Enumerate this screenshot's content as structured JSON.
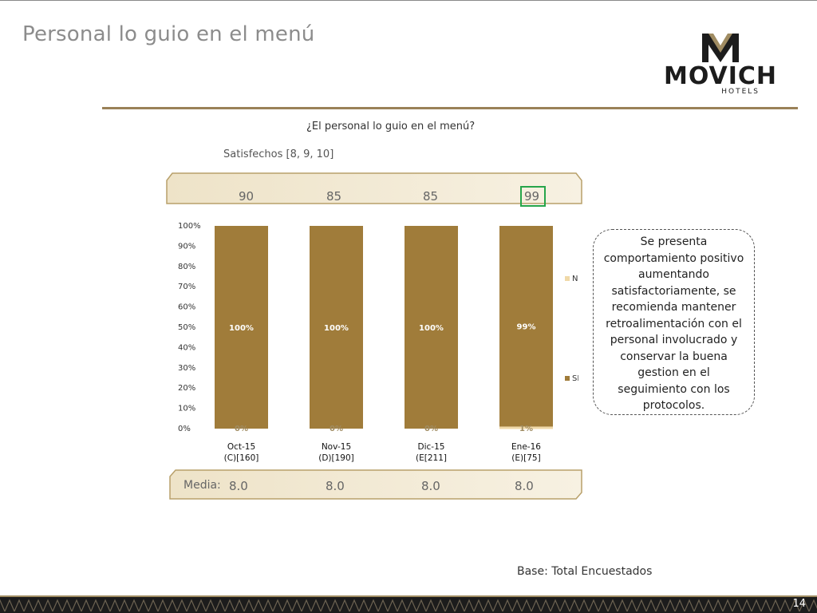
{
  "slide": {
    "title": "Personal lo guio en el menú",
    "page_number": "14",
    "base_note": "Base: Total Encuestados"
  },
  "logo": {
    "word": "MOVICH",
    "sub": "HOTELS"
  },
  "satisfaction": {
    "label": "Satisfechos [8, 9, 10]",
    "values": [
      "90",
      "85",
      "85",
      "99"
    ],
    "highlight_color": "#26a54a"
  },
  "media": {
    "label": "Media:",
    "values": [
      "8.0",
      "8.0",
      "8.0",
      "8.0"
    ]
  },
  "note": "Se presenta comportamiento positivo aumentando satisfactoriamente, se recomienda mantener retroalimentación con el personal involucrado y conservar la buena gestion en el seguimiento con los protocolos.",
  "colors": {
    "si": "#a07c3a",
    "no": "#f0d9a8",
    "accent": "#9a8158"
  },
  "chart_data": {
    "type": "bar",
    "stacked": true,
    "title": "¿El personal lo guio en el menú?",
    "categories": [
      [
        "Oct-15",
        "(C)[160]"
      ],
      [
        "Nov-15",
        "(D)[190]"
      ],
      [
        "Dic-15",
        "(E[211]"
      ],
      [
        "Ene-16",
        "(E)[75]"
      ]
    ],
    "series": [
      {
        "name": "SI",
        "values": [
          100,
          100,
          100,
          99
        ],
        "labels": [
          "100%",
          "100%",
          "100%",
          "99%"
        ]
      },
      {
        "name": "NO",
        "values": [
          0,
          0,
          0,
          1
        ],
        "labels": [
          "0%",
          "0%",
          "0%",
          "1%"
        ]
      }
    ],
    "yticks": [
      "0%",
      "10%",
      "20%",
      "30%",
      "40%",
      "50%",
      "60%",
      "70%",
      "80%",
      "90%",
      "100%"
    ],
    "ylim": [
      0,
      100
    ],
    "legend": "right"
  }
}
